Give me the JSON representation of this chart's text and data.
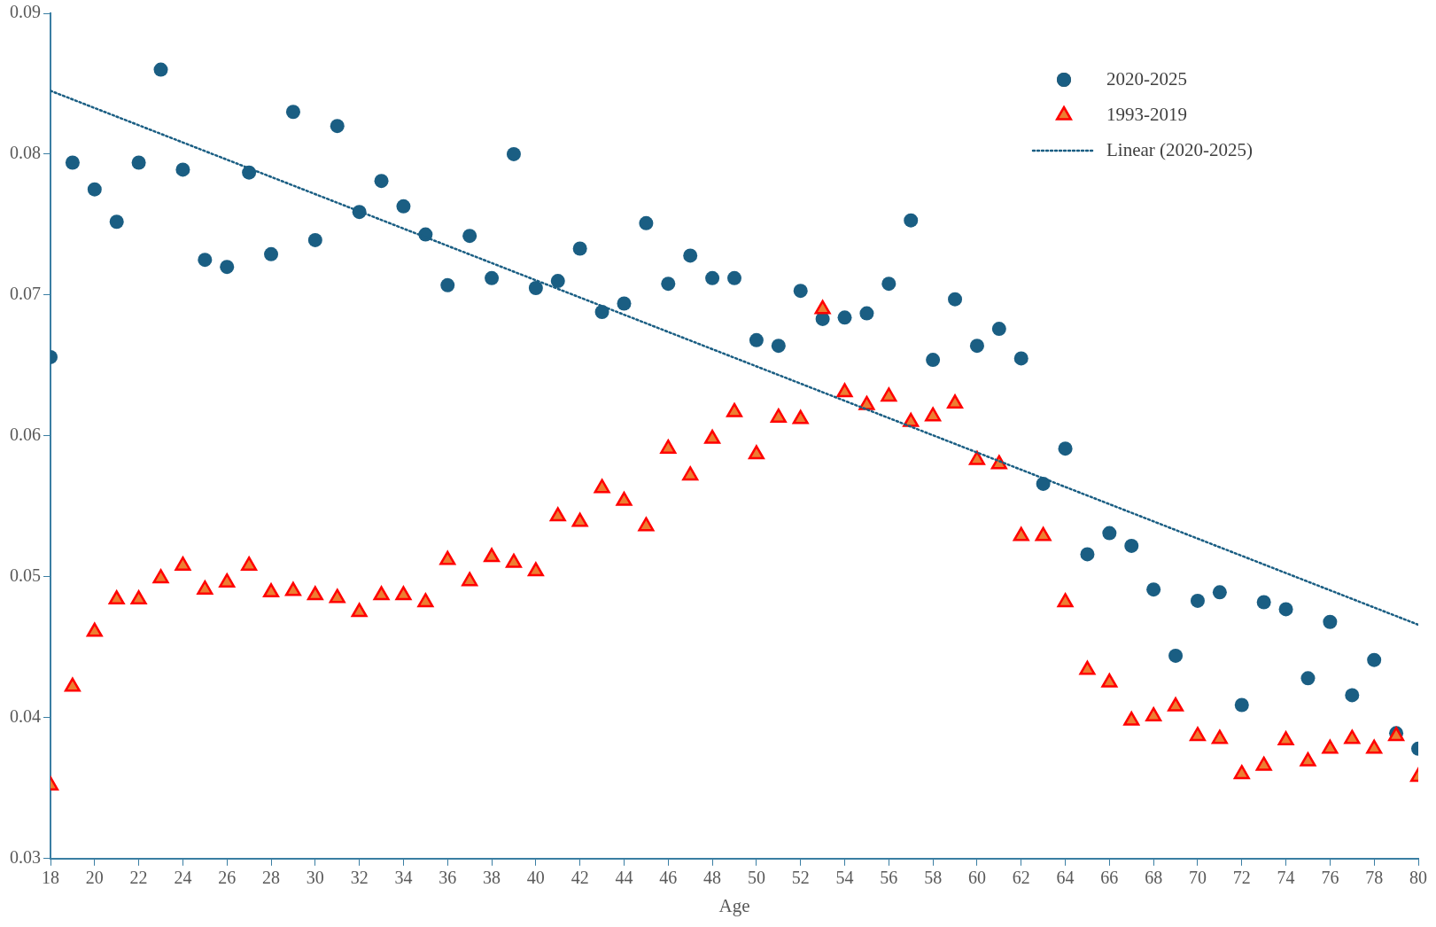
{
  "chart_data": {
    "type": "scatter",
    "xlabel": "Age",
    "x": [
      18,
      19,
      20,
      21,
      22,
      23,
      24,
      25,
      26,
      27,
      28,
      29,
      30,
      31,
      32,
      33,
      34,
      35,
      36,
      37,
      38,
      39,
      40,
      41,
      42,
      43,
      44,
      45,
      46,
      47,
      48,
      49,
      50,
      51,
      52,
      53,
      54,
      55,
      56,
      57,
      58,
      59,
      60,
      61,
      62,
      63,
      64,
      65,
      66,
      67,
      68,
      69,
      70,
      71,
      72,
      73,
      74,
      75,
      76,
      77,
      78,
      79,
      80
    ],
    "xlim": [
      18,
      80
    ],
    "xticks": [
      18,
      20,
      22,
      24,
      26,
      28,
      30,
      32,
      34,
      36,
      38,
      40,
      42,
      44,
      46,
      48,
      50,
      52,
      54,
      56,
      58,
      60,
      62,
      64,
      66,
      68,
      70,
      72,
      74,
      76,
      78,
      80
    ],
    "ylim": [
      0.03,
      0.09
    ],
    "yticks": [
      0.03,
      0.04,
      0.05,
      0.06,
      0.07,
      0.08,
      0.09
    ],
    "grid": false,
    "legend": "top right",
    "series": [
      {
        "name": "2020-2025",
        "color": "#1a5e83",
        "marker": "circle",
        "values": [
          0.0656,
          0.0794,
          0.0775,
          0.0752,
          0.0794,
          0.086,
          0.0789,
          0.0725,
          0.072,
          0.0787,
          0.0729,
          0.083,
          0.0739,
          0.082,
          0.0759,
          0.0781,
          0.0763,
          0.0743,
          0.0707,
          0.0742,
          0.0712,
          0.08,
          0.0705,
          0.071,
          0.0733,
          0.0688,
          0.0694,
          0.0751,
          0.0708,
          0.0728,
          0.0712,
          0.0712,
          0.0668,
          0.0664,
          0.0703,
          0.0683,
          0.0684,
          0.0687,
          0.0708,
          0.0753,
          0.0654,
          0.0697,
          0.0664,
          0.0676,
          0.0655,
          0.0566,
          0.0591,
          0.0516,
          0.0531,
          0.0522,
          0.0491,
          0.0444,
          0.0483,
          0.0489,
          0.0409,
          0.0482,
          0.0477,
          0.0428,
          0.0468,
          0.0416,
          0.0441,
          0.0389,
          0.0378
        ]
      },
      {
        "name": "1993-2019",
        "color": "#ed7d31",
        "marker": "triangle",
        "values": [
          0.0352,
          0.0422,
          0.0461,
          0.0484,
          0.0484,
          0.0499,
          0.0508,
          0.0491,
          0.0496,
          0.0508,
          0.0489,
          0.049,
          0.0487,
          0.0485,
          0.0475,
          0.0487,
          0.0487,
          0.0482,
          0.0512,
          0.0497,
          0.0514,
          0.051,
          0.0504,
          0.0543,
          0.0539,
          0.0563,
          0.0554,
          0.0536,
          0.0591,
          0.0572,
          0.0598,
          0.0617,
          0.0587,
          0.0613,
          0.0612,
          0.069,
          0.0631,
          0.0622,
          0.0628,
          0.061,
          0.0614,
          0.0623,
          0.0583,
          0.058,
          0.0529,
          0.0529,
          0.0482,
          0.0434,
          0.0425,
          0.0398,
          0.0401,
          0.0408,
          0.0387,
          0.0385,
          0.036,
          0.0366,
          0.0384,
          0.0369,
          0.0378,
          0.0385,
          0.0378,
          0.0387,
          0.0358
        ]
      },
      {
        "name": "Linear (2020-2025)",
        "type": "line",
        "color": "#1a5e83",
        "line_style": "dotted",
        "marker": "none",
        "x": [
          18,
          80
        ],
        "values": [
          0.0845,
          0.0466
        ]
      }
    ]
  }
}
